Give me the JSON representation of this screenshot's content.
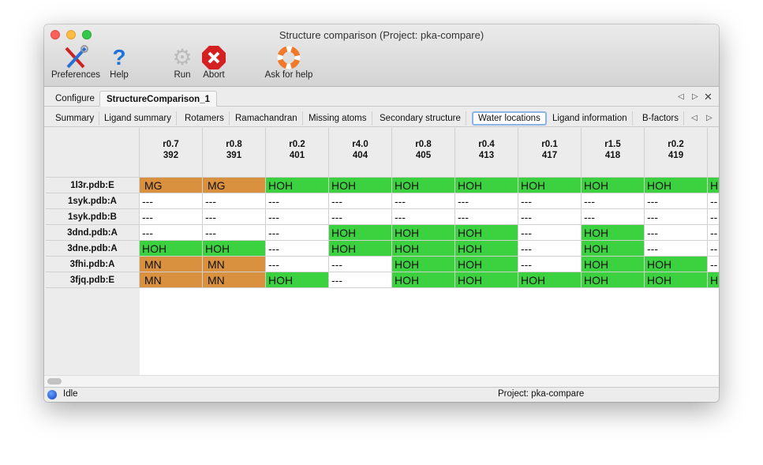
{
  "window": {
    "title": "Structure comparison (Project: pka-compare)"
  },
  "toolbar": {
    "preferences": "Preferences",
    "help": "Help",
    "run": "Run",
    "abort": "Abort",
    "ask": "Ask for help"
  },
  "tabs": [
    "Configure",
    "StructureComparison_1"
  ],
  "active_tab": 1,
  "subtabs": [
    "Summary",
    "Ligand summary",
    "Rotamers",
    "Ramachandran",
    "Missing atoms",
    "Secondary structure",
    "Water locations",
    "Ligand information",
    "B-factors"
  ],
  "active_subtab": 6,
  "colors": {
    "metal": "#d99140",
    "water": "#3bd13f",
    "empty": "#ffffff"
  },
  "table": {
    "columns": [
      {
        "r": "r0.7",
        "n": "392"
      },
      {
        "r": "r0.8",
        "n": "391"
      },
      {
        "r": "r0.2",
        "n": "401"
      },
      {
        "r": "r4.0",
        "n": "404"
      },
      {
        "r": "r0.8",
        "n": "405"
      },
      {
        "r": "r0.4",
        "n": "413"
      },
      {
        "r": "r0.1",
        "n": "417"
      },
      {
        "r": "r1.5",
        "n": "418"
      },
      {
        "r": "r0.2",
        "n": "419"
      },
      {
        "r": "",
        "n": ""
      }
    ],
    "rows": [
      {
        "label": "1l3r.pdb:E",
        "cells": [
          "MG",
          "MG",
          "HOH",
          "HOH",
          "HOH",
          "HOH",
          "HOH",
          "HOH",
          "HOH",
          "H"
        ]
      },
      {
        "label": "1syk.pdb:A",
        "cells": [
          "---",
          "---",
          "---",
          "---",
          "---",
          "---",
          "---",
          "---",
          "---",
          "--"
        ]
      },
      {
        "label": "1syk.pdb:B",
        "cells": [
          "---",
          "---",
          "---",
          "---",
          "---",
          "---",
          "---",
          "---",
          "---",
          "--"
        ]
      },
      {
        "label": "3dnd.pdb:A",
        "cells": [
          "---",
          "---",
          "---",
          "HOH",
          "HOH",
          "HOH",
          "---",
          "HOH",
          "---",
          "--"
        ]
      },
      {
        "label": "3dne.pdb:A",
        "cells": [
          "HOH",
          "HOH",
          "---",
          "HOH",
          "HOH",
          "HOH",
          "---",
          "HOH",
          "---",
          "--"
        ]
      },
      {
        "label": "3fhi.pdb:A",
        "cells": [
          "MN",
          "MN",
          "---",
          "---",
          "HOH",
          "HOH",
          "---",
          "HOH",
          "HOH",
          "--"
        ]
      },
      {
        "label": "3fjq.pdb:E",
        "cells": [
          "MN",
          "MN",
          "HOH",
          "---",
          "HOH",
          "HOH",
          "HOH",
          "HOH",
          "HOH",
          "H"
        ]
      }
    ]
  },
  "status": {
    "state": "Idle",
    "project": "Project: pka-compare"
  }
}
